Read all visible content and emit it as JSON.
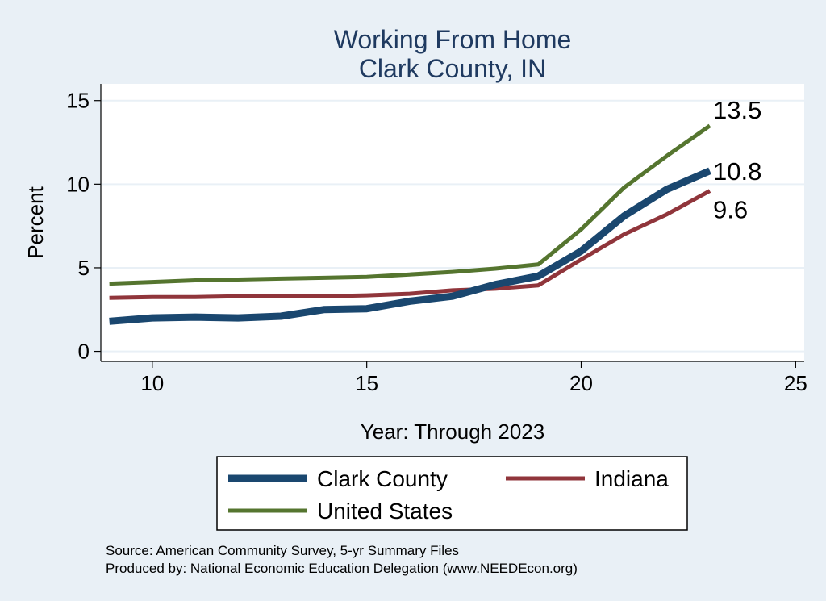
{
  "chart_data": {
    "type": "line",
    "title": "Working From Home",
    "subtitle": "Clark County, IN",
    "xlabel": "Year: Through 2023",
    "ylabel": "Percent",
    "xlim": [
      8.8,
      25.2
    ],
    "ylim": [
      -0.6,
      16
    ],
    "xticks": [
      10,
      15,
      20,
      25
    ],
    "yticks": [
      0,
      5,
      10,
      15
    ],
    "grid": true,
    "legend_position": "bottom",
    "x": [
      9,
      10,
      11,
      12,
      13,
      14,
      15,
      16,
      17,
      18,
      19,
      20,
      21,
      22,
      23
    ],
    "series": [
      {
        "name": "Clark County",
        "color": "#1a476f",
        "values": [
          1.8,
          2.0,
          2.05,
          2.0,
          2.1,
          2.5,
          2.55,
          3.0,
          3.3,
          4.0,
          4.5,
          6.0,
          8.1,
          9.7,
          10.8
        ],
        "end_label": "10.8"
      },
      {
        "name": "Indiana",
        "color": "#90353b",
        "values": [
          3.2,
          3.25,
          3.25,
          3.3,
          3.3,
          3.3,
          3.35,
          3.45,
          3.65,
          3.75,
          3.95,
          5.5,
          7.0,
          8.2,
          9.6
        ],
        "end_label": "9.6"
      },
      {
        "name": "United States",
        "color": "#55752f",
        "values": [
          4.05,
          4.15,
          4.25,
          4.3,
          4.35,
          4.4,
          4.45,
          4.6,
          4.75,
          4.95,
          5.2,
          7.3,
          9.8,
          11.7,
          13.5
        ],
        "end_label": "13.5"
      }
    ]
  },
  "legend": {
    "items": [
      {
        "label": "Clark County",
        "color": "#1a476f"
      },
      {
        "label": "Indiana",
        "color": "#90353b"
      },
      {
        "label": "United States",
        "color": "#55752f"
      }
    ]
  },
  "source_lines": [
    "Source: American Community Survey, 5-yr Summary Files",
    "Produced by: National Economic Education Delegation (www.NEEDEcon.org)"
  ]
}
